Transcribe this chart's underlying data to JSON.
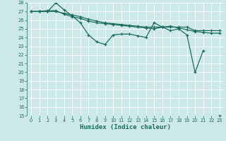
{
  "xlabel": "Humidex (Indice chaleur)",
  "bg_color": "#cce8e8",
  "grid_color": "#ffffff",
  "line_color": "#1a6b60",
  "xlim": [
    -0.5,
    23.5
  ],
  "ylim": [
    15,
    28
  ],
  "yticks": [
    15,
    16,
    17,
    18,
    19,
    20,
    21,
    22,
    23,
    24,
    25,
    26,
    27,
    28
  ],
  "xticks": [
    0,
    1,
    2,
    3,
    4,
    5,
    6,
    7,
    8,
    9,
    10,
    11,
    12,
    13,
    14,
    15,
    16,
    17,
    18,
    19,
    20,
    21,
    22,
    23
  ],
  "series": [
    {
      "x": [
        0,
        1,
        2,
        3,
        4,
        5,
        6,
        7,
        8,
        9,
        10,
        11,
        12,
        13,
        14,
        15,
        16,
        17,
        18,
        19,
        20,
        21,
        22,
        23
      ],
      "y": [
        27.0,
        27.0,
        27.0,
        28.0,
        27.2,
        26.5,
        25.7,
        24.3,
        23.5,
        23.2,
        24.3,
        24.4,
        24.4,
        24.2,
        24.0,
        25.7,
        25.2,
        24.8,
        25.0,
        24.3,
        20.0,
        22.5,
        null,
        15.0
      ],
      "has_markers": true
    },
    {
      "x": [
        0,
        1,
        2,
        3,
        4,
        5,
        6,
        7,
        8,
        9,
        10,
        11,
        12,
        13,
        14,
        15,
        16,
        17,
        18,
        19,
        20,
        21,
        22,
        23
      ],
      "y": [
        27.0,
        27.0,
        27.1,
        27.1,
        26.7,
        26.4,
        26.2,
        25.9,
        25.7,
        25.6,
        25.5,
        25.4,
        25.3,
        25.2,
        25.1,
        25.0,
        25.2,
        25.3,
        25.1,
        24.9,
        24.7,
        24.6,
        24.5,
        24.5
      ],
      "has_markers": true
    },
    {
      "x": [
        0,
        1,
        2,
        3,
        4,
        5,
        6,
        7,
        8,
        9,
        10,
        11,
        12,
        13,
        14,
        15,
        16,
        17,
        18,
        19,
        20,
        21,
        22,
        23
      ],
      "y": [
        27.0,
        27.0,
        27.0,
        27.0,
        26.8,
        26.6,
        26.4,
        26.1,
        25.9,
        25.7,
        25.6,
        25.5,
        25.4,
        25.3,
        25.2,
        25.2,
        25.2,
        25.2,
        25.2,
        25.2,
        24.8,
        24.8,
        24.8,
        24.8
      ],
      "has_markers": true
    }
  ]
}
